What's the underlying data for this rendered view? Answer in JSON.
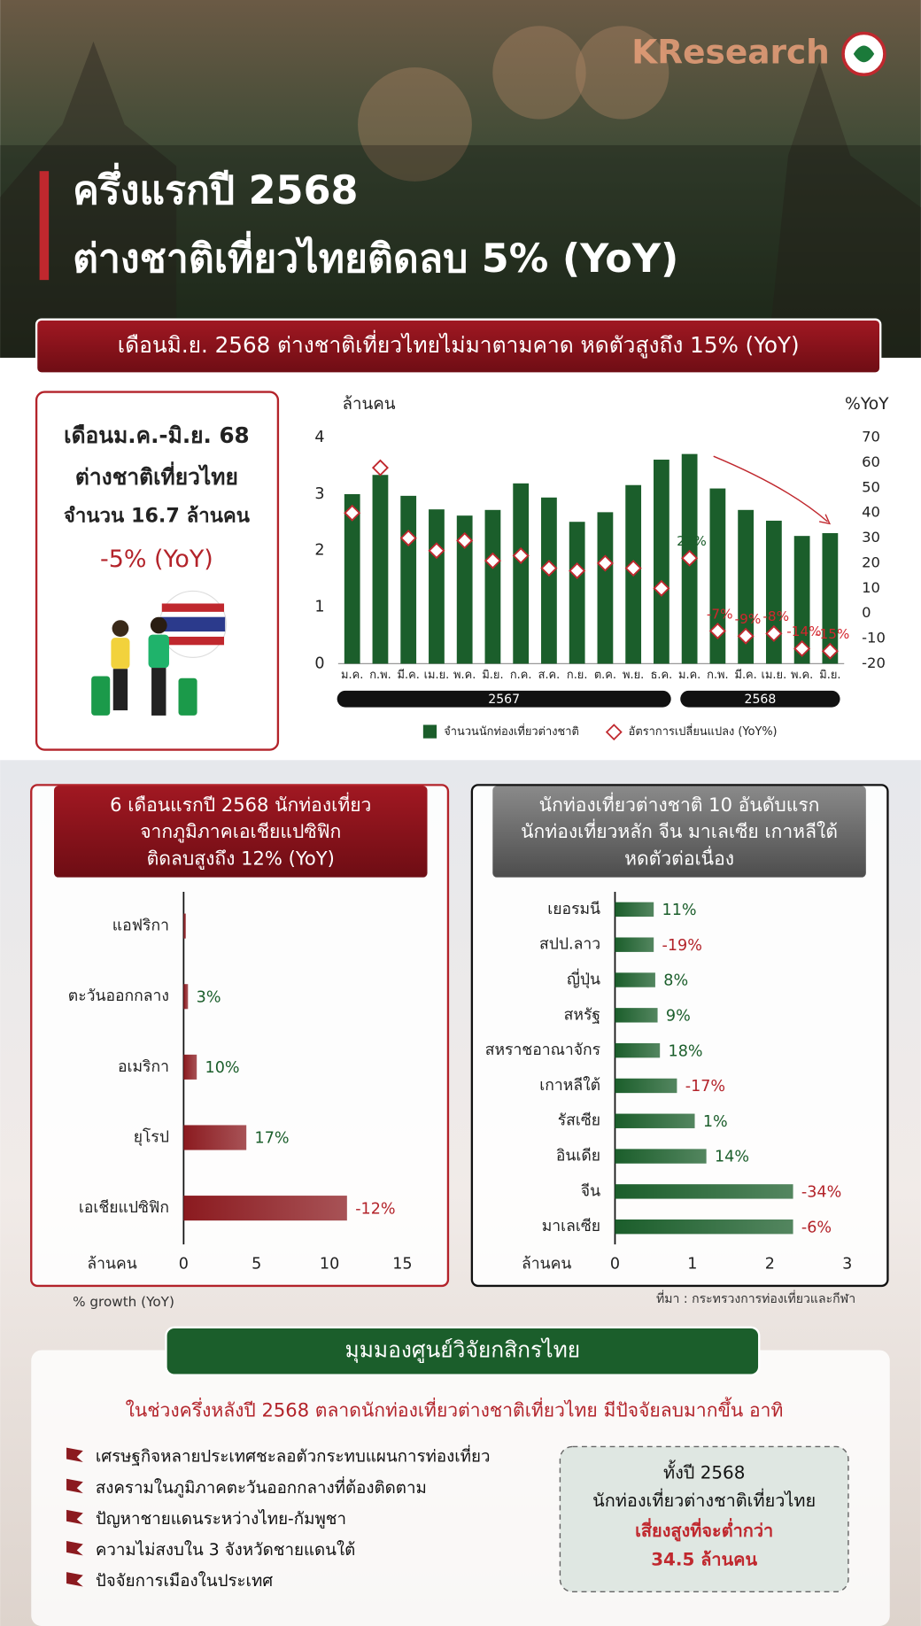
{
  "header": {
    "title": [
      "ครึ่งแรกปี 2568",
      "ต่างชาติเที่ยวไทยติดลบ 5% (YoY)"
    ],
    "logo": "KResearch"
  },
  "banner": "เดือนมิ.ย. 2568 ต่างชาติเที่ยวไทยไม่มาตามคาด หดตัวสูงถึง 15% (YoY)",
  "summary": [
    "เดือนม.ค.-มิ.ย. 68",
    "ต่างชาติเที่ยวไทย",
    "จำนวน 16.7 ล้านคน",
    "-5% (YoY)"
  ],
  "chart_data": [
    {
      "type": "bar_line",
      "y_label": "ล้านคน",
      "y2_label": "%YoY",
      "categories": [
        "ม.ค.",
        "ก.พ.",
        "มี.ค.",
        "เม.ย.",
        "พ.ค.",
        "มิ.ย.",
        "ก.ค.",
        "ส.ค.",
        "ก.ย.",
        "ต.ค.",
        "พ.ย.",
        "ธ.ค.",
        "ม.ค.",
        "ก.พ.",
        "มี.ค.",
        "เม.ย.",
        "พ.ค.",
        "มิ.ย."
      ],
      "year_groups": [
        "2567",
        "2568"
      ],
      "series": [
        {
          "name": "จำนวนนักท่องเที่ยวต่างชาติ",
          "type": "bar",
          "color": "#1b5e2b",
          "values": [
            3.0,
            3.34,
            2.97,
            2.73,
            2.62,
            2.72,
            3.19,
            2.94,
            2.51,
            2.68,
            3.16,
            3.61,
            3.71,
            3.1,
            2.72,
            2.53,
            2.26,
            2.31
          ]
        },
        {
          "name": "อัตราการเปลี่ยนแปลง (YoY%)",
          "type": "marker",
          "axis": "y2",
          "color": "#c0282e",
          "values": [
            40,
            58,
            30,
            25,
            29,
            21,
            23,
            18,
            17,
            20,
            18,
            10,
            22,
            -7,
            -9,
            -8,
            -14,
            -15
          ],
          "value_labels": [
            null,
            null,
            null,
            null,
            null,
            null,
            null,
            null,
            null,
            null,
            null,
            null,
            "22%",
            "-7%",
            "-9%",
            "-8%",
            "-14%",
            "-15%"
          ]
        }
      ],
      "ylim": [
        0,
        4
      ],
      "yticks": [
        0,
        1,
        2,
        3,
        4
      ],
      "y2lim": [
        -20,
        70
      ],
      "y2ticks": [
        -20,
        -10,
        0,
        10,
        20,
        30,
        40,
        50,
        60,
        70
      ],
      "positive_color": "#1b5e2b",
      "negative_color": "#d3262e"
    },
    {
      "type": "hbar",
      "title": [
        "6 เดือนแรกปี 2568 นักท่องเที่ยว",
        "จากภูมิภาคเอเชียแปซิฟิก",
        "ติดลบสูงถึง 12% (YoY)"
      ],
      "x_label": "ล้านคน",
      "categories": [
        "แอฟริกา",
        "ตะวันออกกลาง",
        "อเมริกา",
        "ยุโรป",
        "เอเชียแปซิฟิก"
      ],
      "values": [
        0.15,
        0.3,
        0.9,
        4.3,
        11.2
      ],
      "color": "#8b1a1f",
      "growth": {
        "name": "% growth (YoY)",
        "values": [
          null,
          3,
          10,
          17,
          -12
        ],
        "value_labels": [
          null,
          "3%",
          "10%",
          "17%",
          "-12%"
        ]
      },
      "xlim": [
        0,
        15
      ],
      "xticks": [
        0,
        5,
        10,
        15
      ],
      "positive_color": "#1b5e2b",
      "negative_color": "#b3232a"
    },
    {
      "type": "hbar",
      "title": [
        "นักท่องเที่ยวต่างชาติ 10 อันดับแรก",
        "นักท่องเที่ยวหลัก จีน มาเลเซีย เกาหลีใต้",
        "หดตัวต่อเนื่อง"
      ],
      "x_label": "ล้านคน",
      "categories": [
        "เยอรมนี",
        "สปป.ลาว",
        "ญี่ปุ่น",
        "สหรัฐ",
        "สหราชอาณาจักร",
        "เกาหลีใต้",
        "รัสเซีย",
        "อินเดีย",
        "จีน",
        "มาเลเซีย"
      ],
      "values": [
        0.5,
        0.5,
        0.52,
        0.55,
        0.58,
        0.8,
        1.03,
        1.18,
        2.3,
        2.3
      ],
      "color": "#1b5e2b",
      "growth": {
        "values": [
          11,
          -19,
          8,
          9,
          18,
          -17,
          1,
          14,
          -34,
          -6
        ],
        "value_labels": [
          "11%",
          "-19%",
          "8%",
          "9%",
          "18%",
          "-17%",
          "1%",
          "14%",
          "-34%",
          "-6%"
        ]
      },
      "xlim": [
        0,
        3
      ],
      "xticks": [
        0,
        1,
        2,
        3
      ],
      "source": "ที่มา : กระทรวงการท่องเที่ยวและกีฬา",
      "positive_color": "#1b5e2b",
      "negative_color": "#b3232a"
    }
  ],
  "outlook": {
    "heading": "มุมมองศูนย์วิจัยกสิกรไทย",
    "intro": "ในช่วงครึ่งหลังปี 2568 ตลาดนักท่องเที่ยวต่างชาติเที่ยวไทย มีปัจจัยลบมากขึ้น อาทิ",
    "factors": [
      "เศรษฐกิจหลายประเทศชะลอตัวกระทบแผนการท่องเที่ยว",
      "สงครามในภูมิภาคตะวันออกกลางที่ต้องติดตาม",
      "ปัญหาชายแดนระหว่างไทย-กัมพูชา",
      "ความไม่สงบใน 3 จังหวัดชายแดนใต้",
      "ปัจจัยการเมืองในประเทศ"
    ],
    "callout": [
      "ทั้งปี 2568",
      "นักท่องเที่ยวต่างชาติเที่ยวไทย",
      "เสี่ยงสูงที่จะต่ำกว่า",
      "34.5 ล้านคน"
    ]
  }
}
